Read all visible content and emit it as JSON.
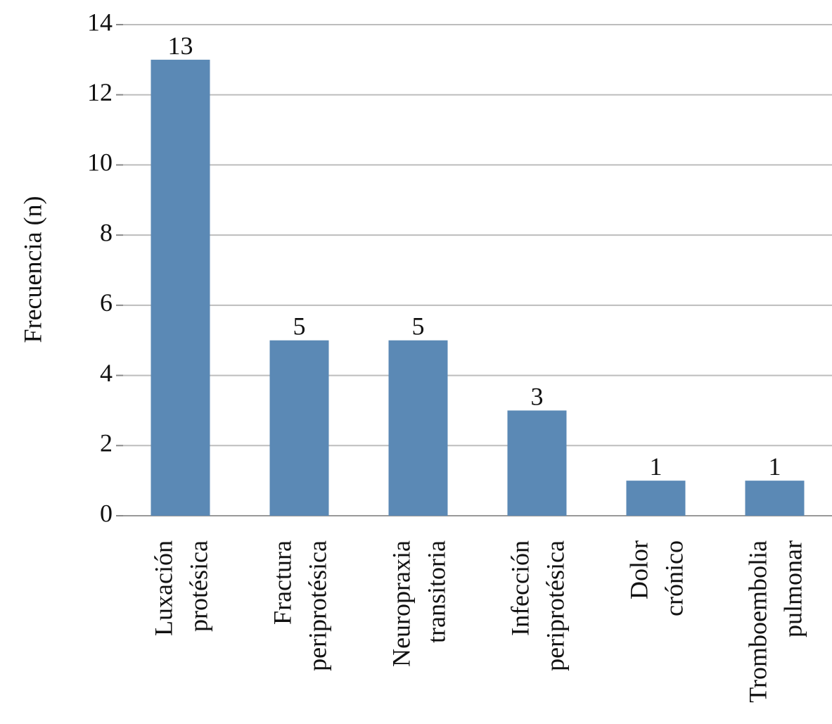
{
  "chart_data": {
    "type": "bar",
    "y_label": "Frecuencia (n)",
    "categories": [
      [
        "Luxación",
        "protésica"
      ],
      [
        "Fractura",
        "periprotésica"
      ],
      [
        "Neuropraxia",
        "transitoria"
      ],
      [
        "Infección",
        "periprotésica"
      ],
      [
        "Dolor",
        "crónico"
      ],
      [
        "Tromboembolia",
        "pulmonar"
      ]
    ],
    "values": [
      13,
      5,
      5,
      3,
      1,
      1
    ],
    "color": "#5b89b5",
    "ylim": [
      0,
      14
    ],
    "yticks": [
      0,
      2,
      4,
      6,
      8,
      10,
      12,
      14
    ],
    "grid": true
  }
}
